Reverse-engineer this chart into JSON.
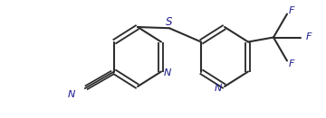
{
  "bg_color": "#ffffff",
  "line_color": "#2d2d2d",
  "text_color": "#1a1a8c",
  "lw": 1.5,
  "font_size": 7.5,
  "figsize": [
    3.6,
    1.31
  ],
  "dpi": 100,
  "N_label": "N",
  "S_label": "S",
  "F_label": "F"
}
